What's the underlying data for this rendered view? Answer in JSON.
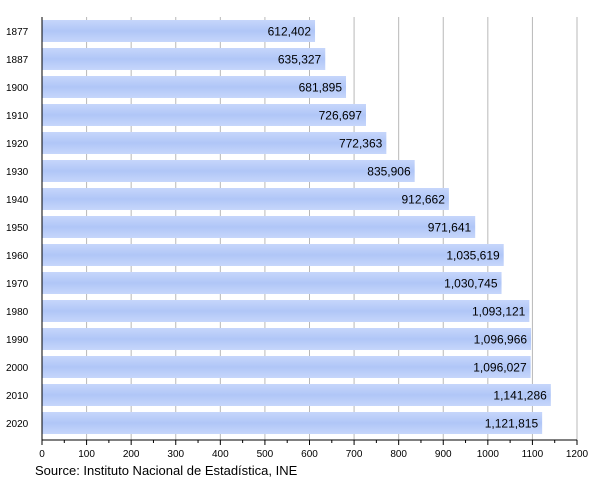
{
  "chart_data": {
    "type": "bar",
    "orientation": "horizontal",
    "categories": [
      "1877",
      "1887",
      "1900",
      "1910",
      "1920",
      "1930",
      "1940",
      "1950",
      "1960",
      "1970",
      "1980",
      "1990",
      "2000",
      "2010",
      "2020"
    ],
    "values": [
      612402,
      635327,
      681895,
      726697,
      772363,
      835906,
      912662,
      971641,
      1035619,
      1030745,
      1093121,
      1096966,
      1096027,
      1141286,
      1121815
    ],
    "data_labels": [
      "612,402",
      "635,327",
      "681,895",
      "726,697",
      "772,363",
      "835,906",
      "912,662",
      "971,641",
      "1,035,619",
      "1,030,745",
      "1,093,121",
      "1,096,966",
      "1,096,027",
      "1,141,286",
      "1,121,815"
    ],
    "xlim": [
      0,
      1200
    ],
    "x_unit_scale": 1000,
    "x_ticks": [
      "0",
      "100",
      "200",
      "300",
      "400",
      "500",
      "600",
      "700",
      "800",
      "900",
      "1000",
      "1100",
      "1200"
    ],
    "grid": true,
    "bar_color": "#b3c8f8",
    "source": "Source: Instituto Nacional de Estadística, INE"
  }
}
